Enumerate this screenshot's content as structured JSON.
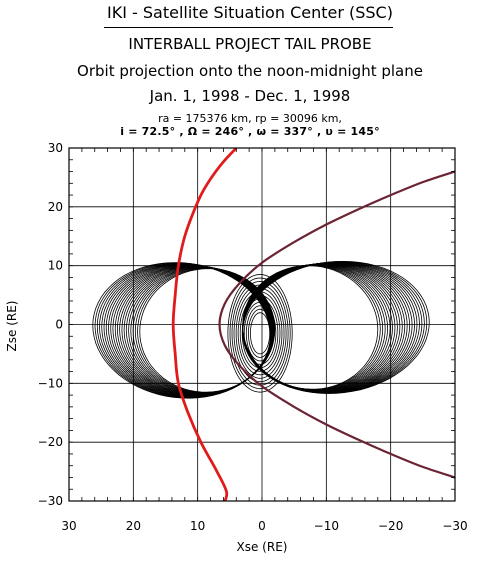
{
  "header": {
    "center_title": "IKI - Satellite Situation Center (SSC)",
    "project_title": "INTERBALL PROJECT TAIL PROBE",
    "plot_title": "Orbit projection onto the noon-midnight plane",
    "date_range": "Jan. 1, 1998 - Dec. 1, 1998",
    "params_line1": "ra = 175376 km, rp = 30096 km,",
    "params_line2": "i = 72.5° , Ω = 246° , ω = 337° , υ = 145°"
  },
  "chart_data": {
    "type": "line",
    "xlabel": "Xse (RE)",
    "ylabel": "Zse (RE)",
    "xlim": [
      30,
      -30
    ],
    "ylim": [
      -30,
      30
    ],
    "xticks": [
      30,
      20,
      10,
      0,
      -10,
      -20,
      -30
    ],
    "yticks": [
      -30,
      -20,
      -10,
      0,
      10,
      20,
      30
    ],
    "xtick_labels": [
      "30",
      "20",
      "10",
      "0",
      "−10",
      "−20",
      "−30"
    ],
    "ytick_labels": [
      "−30",
      "−20",
      "−10",
      "0",
      "10",
      "20",
      "30"
    ],
    "grid": true,
    "series": [
      {
        "color": "#e11b1b",
        "points": [
          [
            4,
            30
          ],
          [
            6.5,
            27
          ],
          [
            9,
            23
          ],
          [
            10.5,
            19.5
          ],
          [
            12,
            15
          ],
          [
            13,
            10
          ],
          [
            13.5,
            5
          ],
          [
            13.8,
            0
          ],
          [
            13.5,
            -5
          ],
          [
            13,
            -10
          ],
          [
            11.5,
            -15
          ],
          [
            9.5,
            -20
          ],
          [
            7,
            -25
          ],
          [
            5.5,
            -28.5
          ],
          [
            6,
            -30.5
          ]
        ]
      },
      {
        "color": "#6b2433",
        "points": [
          [
            -30,
            26
          ],
          [
            -25,
            24.2
          ],
          [
            -20,
            22
          ],
          [
            -15,
            19.6
          ],
          [
            -10,
            17
          ],
          [
            -5,
            14
          ],
          [
            0,
            10.5
          ],
          [
            3.5,
            7
          ],
          [
            5.8,
            3.5
          ],
          [
            6.6,
            0
          ],
          [
            5.8,
            -3.5
          ],
          [
            3.5,
            -7
          ],
          [
            0,
            -10.5
          ],
          [
            -5,
            -14
          ],
          [
            -10,
            -17
          ],
          [
            -15,
            -19.6
          ],
          [
            -20,
            -22
          ],
          [
            -25,
            -24.2
          ],
          [
            -30,
            -26
          ]
        ]
      },
      {
        "color": "#000000",
        "loops": {
          "count": 22,
          "center_x": [
            12.5,
            8.5
          ],
          "center_z": [
            -1.0,
            -1.0
          ],
          "semi_x": [
            13.8,
            10.5
          ],
          "semi_z": [
            11.5,
            10.5
          ],
          "tilt": [
            0.06,
            -0.02
          ],
          "count_b": 22,
          "center_x_b": [
            -11.5,
            -7.5
          ],
          "center_z_b": [
            -0.5,
            -0.5
          ],
          "semi_x_b": [
            14.5,
            10.5
          ],
          "semi_z_b": [
            11.2,
            10.5
          ],
          "tilt_b": [
            -0.06,
            0.03
          ],
          "inner_count": 12,
          "inner_center_x": [
            0.3,
            0.3
          ],
          "inner_center_z": [
            -1.5,
            -1.5
          ],
          "inner_semi_x": [
            5.0,
            1.5
          ],
          "inner_semi_z": [
            10.0,
            3.5
          ]
        }
      }
    ]
  }
}
